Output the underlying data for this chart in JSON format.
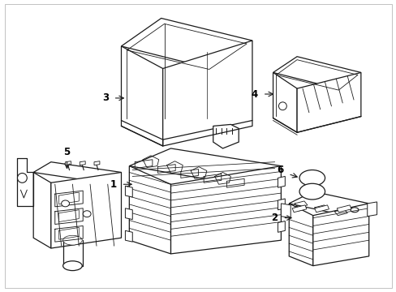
{
  "background_color": "#ffffff",
  "line_color": "#1a1a1a",
  "line_width": 0.9,
  "fig_width": 4.89,
  "fig_height": 3.6,
  "dpi": 100,
  "border_color": "#cccccc",
  "label_fontsize": 8.5
}
